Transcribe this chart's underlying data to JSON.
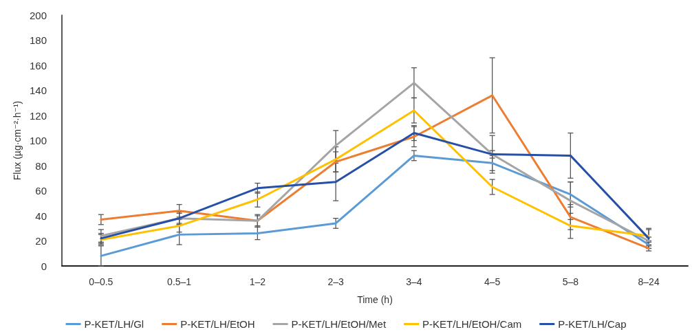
{
  "chart_data": {
    "type": "line",
    "xlabel": "Time (h)",
    "ylabel": "Flux (µg·cm⁻²·h⁻¹)",
    "categories": [
      "0–0.5",
      "0.5–1",
      "1–2",
      "2–3",
      "3–4",
      "4–5",
      "5–8",
      "8–24"
    ],
    "series": [
      {
        "name": "P-KET/LH/Gl",
        "color": "#5b9bd5",
        "values": [
          8,
          25,
          26,
          34,
          88,
          82,
          57,
          17
        ],
        "errors": [
          8,
          8,
          5,
          4,
          4,
          6,
          10,
          3
        ]
      },
      {
        "name": "P-KET/LH/EtOH",
        "color": "#ed7d31",
        "values": [
          37,
          44,
          36,
          83,
          103,
          136,
          39,
          14
        ],
        "errors": [
          4,
          5,
          5,
          8,
          8,
          30,
          10,
          2
        ]
      },
      {
        "name": "P-KET/LH/EtOH/Met",
        "color": "#a5a5a5",
        "values": [
          24,
          38,
          36,
          96,
          146,
          89,
          52,
          20
        ],
        "errors": [
          5,
          4,
          4,
          12,
          12,
          15,
          15,
          3
        ]
      },
      {
        "name": "P-KET/LH/EtOH/Cam",
        "color": "#ffc000",
        "values": [
          21,
          32,
          53,
          85,
          124,
          63,
          32,
          24
        ],
        "errors": [
          4,
          5,
          6,
          10,
          10,
          6,
          10,
          5
        ]
      },
      {
        "name": "P-KET/LH/Cap",
        "color": "#264fa8",
        "values": [
          22,
          38,
          62,
          67,
          106,
          89,
          88,
          22
        ],
        "errors": [
          4,
          5,
          4,
          15,
          6,
          3,
          18,
          8
        ]
      }
    ],
    "ylim": [
      0,
      200
    ],
    "yticks": [
      0,
      20,
      40,
      60,
      80,
      100,
      120,
      140,
      160,
      180,
      200
    ],
    "grid": false,
    "legend": "bottom",
    "marker": "none",
    "line_style": "solid"
  }
}
